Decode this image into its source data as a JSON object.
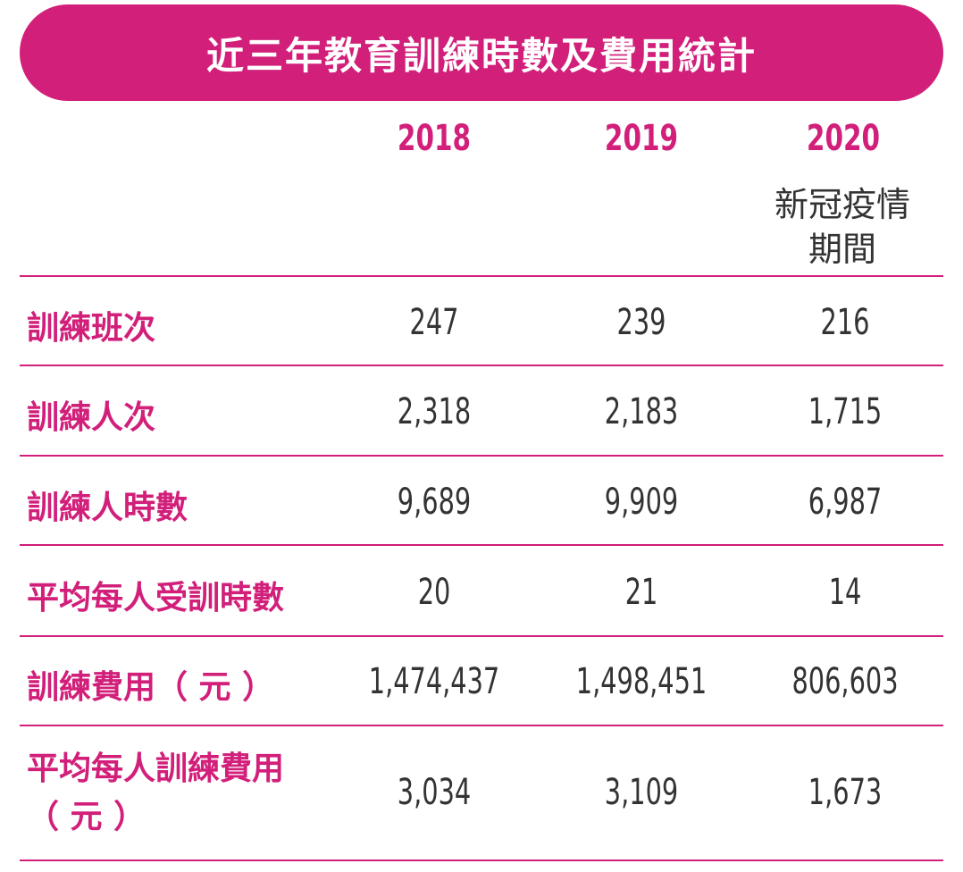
{
  "title": "近三年教育訓練時數及費用統計",
  "years": [
    "2018",
    "2019",
    "2020"
  ],
  "covid_note": [
    "新冠疫情",
    "期間"
  ],
  "rows": [
    {
      "label": "訓練班次",
      "values": [
        "247",
        "239",
        "216"
      ]
    },
    {
      "label": "訓練人次",
      "values": [
        "2,318",
        "2,183",
        "1,715"
      ]
    },
    {
      "label": "訓練人時數",
      "values": [
        "9,689",
        "9,909",
        "6,987"
      ]
    },
    {
      "label": "平均每人受訓時數",
      "values": [
        "20",
        "21",
        "14"
      ]
    },
    {
      "label": "訓練費用（ 元 ）",
      "values": [
        "1,474,437",
        "1,498,451",
        "806,603"
      ]
    },
    {
      "label_lines": [
        "平均每人訓練費用",
        "（ 元 ）"
      ],
      "values": [
        "3,034",
        "3,109",
        "1,673"
      ]
    }
  ],
  "colors": {
    "accent": "#d11f7a",
    "text": "#333333",
    "title_text": "#ffffff"
  }
}
